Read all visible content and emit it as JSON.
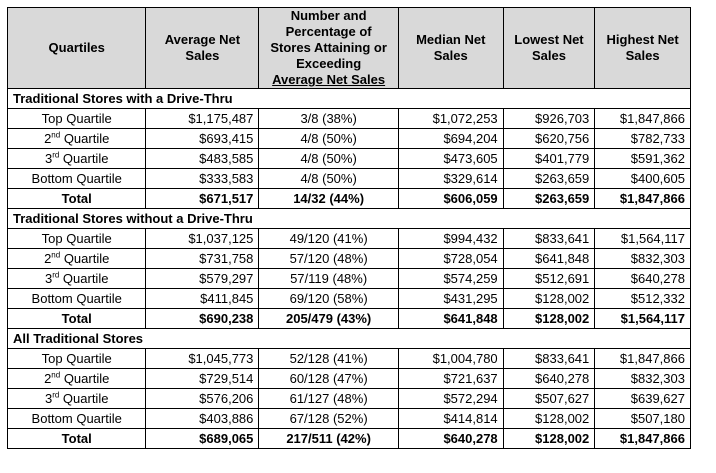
{
  "headers": {
    "quartiles": "Quartiles",
    "avg_net_sales": "Average Net Sales",
    "number_pct_line1": "Number and",
    "number_pct_line2": "Percentage of",
    "number_pct_line3": "Stores Attaining or",
    "number_pct_line4": "Exceeding",
    "number_pct_line5": "Average Net Sales",
    "median": "Median Net Sales",
    "lowest": "Lowest Net Sales",
    "highest": "Highest Net Sales"
  },
  "sections": [
    {
      "title": "Traditional Stores with a Drive-Thru",
      "rows": [
        {
          "q": "Top Quartile",
          "q_base": "",
          "q_sup": "",
          "avg": "$1,175,487",
          "num": "3/8 (38%)",
          "median": "$1,072,253",
          "low": "$926,703",
          "high": "$1,847,866"
        },
        {
          "q": "",
          "q_base": "2",
          "q_sup": "nd",
          "q_rest": " Quartile",
          "avg": "$693,415",
          "num": "4/8 (50%)",
          "median": "$694,204",
          "low": "$620,756",
          "high": "$782,733"
        },
        {
          "q": "",
          "q_base": "3",
          "q_sup": "rd",
          "q_rest": " Quartile",
          "avg": "$483,585",
          "num": "4/8 (50%)",
          "median": "$473,605",
          "low": "$401,779",
          "high": "$591,362"
        },
        {
          "q": "Bottom Quartile",
          "q_base": "",
          "q_sup": "",
          "avg": "$333,583",
          "num": "4/8 (50%)",
          "median": "$329,614",
          "low": "$263,659",
          "high": "$400,605"
        }
      ],
      "total": {
        "q": "Total",
        "avg": "$671,517",
        "num": "14/32 (44%)",
        "median": "$606,059",
        "low": "$263,659",
        "high": "$1,847,866"
      }
    },
    {
      "title": "Traditional Stores without a Drive-Thru",
      "rows": [
        {
          "q": "Top Quartile",
          "q_base": "",
          "q_sup": "",
          "avg": "$1,037,125",
          "num": "49/120 (41%)",
          "median": "$994,432",
          "low": "$833,641",
          "high": "$1,564,117"
        },
        {
          "q": "",
          "q_base": "2",
          "q_sup": "nd",
          "q_rest": " Quartile",
          "avg": "$731,758",
          "num": "57/120 (48%)",
          "median": "$728,054",
          "low": "$641,848",
          "high": "$832,303"
        },
        {
          "q": "",
          "q_base": "3",
          "q_sup": "rd",
          "q_rest": " Quartile",
          "avg": "$579,297",
          "num": "57/119 (48%)",
          "median": "$574,259",
          "low": "$512,691",
          "high": "$640,278"
        },
        {
          "q": "Bottom Quartile",
          "q_base": "",
          "q_sup": "",
          "avg": "$411,845",
          "num": "69/120 (58%)",
          "median": "$431,295",
          "low": "$128,002",
          "high": "$512,332"
        }
      ],
      "total": {
        "q": "Total",
        "avg": "$690,238",
        "num": "205/479 (43%)",
        "median": "$641,848",
        "low": "$128,002",
        "high": "$1,564,117"
      }
    },
    {
      "title": "All Traditional Stores",
      "rows": [
        {
          "q": "Top Quartile",
          "q_base": "",
          "q_sup": "",
          "avg": "$1,045,773",
          "num": "52/128 (41%)",
          "median": "$1,004,780",
          "low": "$833,641",
          "high": "$1,847,866"
        },
        {
          "q": "",
          "q_base": "2",
          "q_sup": "nd",
          "q_rest": " Quartile",
          "avg": "$729,514",
          "num": "60/128 (47%)",
          "median": "$721,637",
          "low": "$640,278",
          "high": "$832,303"
        },
        {
          "q": "",
          "q_base": "3",
          "q_sup": "rd",
          "q_rest": " Quartile",
          "avg": "$576,206",
          "num": "61/127 (48%)",
          "median": "$572,294",
          "low": "$507,627",
          "high": "$639,627"
        },
        {
          "q": "Bottom Quartile",
          "q_base": "",
          "q_sup": "",
          "avg": "$403,886",
          "num": "67/128 (52%)",
          "median": "$414,814",
          "low": "$128,002",
          "high": "$507,180"
        }
      ],
      "total": {
        "q": "Total",
        "avg": "$689,065",
        "num": "217/511 (42%)",
        "median": "$640,278",
        "low": "$128,002",
        "high": "$1,847,866"
      }
    }
  ],
  "colors": {
    "header_bg": "#d9d9d9",
    "border": "#000000"
  }
}
